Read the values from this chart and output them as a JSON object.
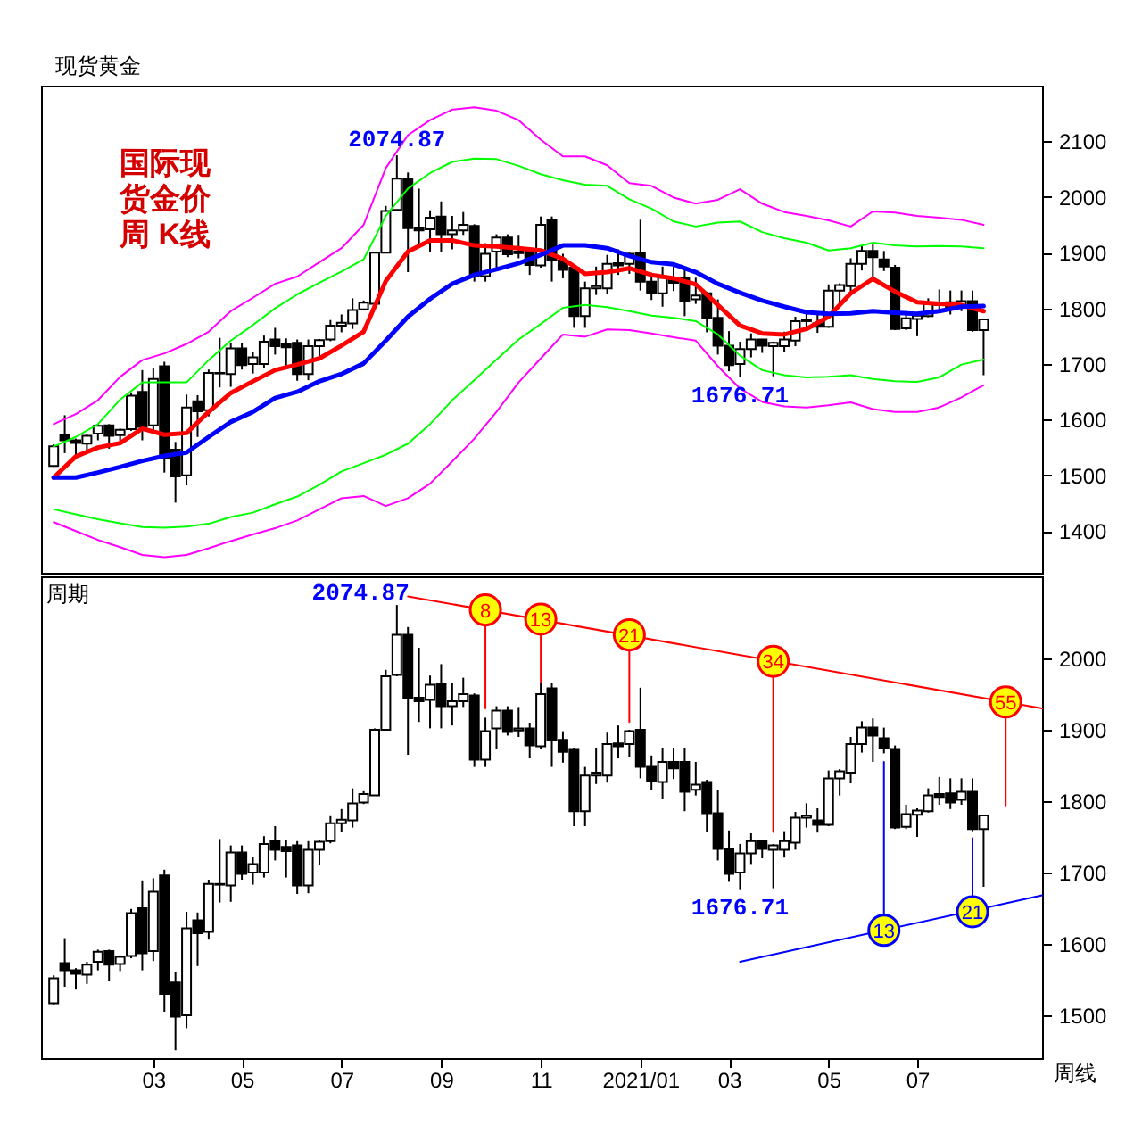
{
  "chart_data": [
    {
      "type": "candlestick",
      "title": "现货黄金",
      "color": "#000000",
      "x": [
        "2020-01-03",
        "2020-01-10",
        "2020-01-17",
        "2020-01-24",
        "2020-01-31",
        "2020-02-07",
        "2020-02-14",
        "2020-02-21",
        "2020-02-28",
        "2020-03-06",
        "2020-03-13",
        "2020-03-20",
        "2020-03-27",
        "2020-04-03",
        "2020-04-10",
        "2020-04-17",
        "2020-04-24",
        "2020-05-01",
        "2020-05-08",
        "2020-05-15",
        "2020-05-22",
        "2020-05-29",
        "2020-06-05",
        "2020-06-12",
        "2020-06-19",
        "2020-06-26",
        "2020-07-03",
        "2020-07-10",
        "2020-07-17",
        "2020-07-24",
        "2020-07-31",
        "2020-08-07",
        "2020-08-14",
        "2020-08-21",
        "2020-08-28",
        "2020-09-04",
        "2020-09-11",
        "2020-09-18",
        "2020-09-25",
        "2020-10-02",
        "2020-10-09",
        "2020-10-16",
        "2020-10-23",
        "2020-10-30",
        "2020-11-06",
        "2020-11-13",
        "2020-11-20",
        "2020-11-27",
        "2020-12-04",
        "2020-12-11",
        "2020-12-18",
        "2020-12-25",
        "2021-01-01",
        "2021-01-08",
        "2021-01-15",
        "2021-01-22",
        "2021-01-29",
        "2021-02-05",
        "2021-02-12",
        "2021-02-19",
        "2021-02-26",
        "2021-03-05",
        "2021-03-12",
        "2021-03-19",
        "2021-03-26",
        "2021-04-02",
        "2021-04-09",
        "2021-04-16",
        "2021-04-23",
        "2021-04-30",
        "2021-05-07",
        "2021-05-14",
        "2021-05-21",
        "2021-05-28",
        "2021-06-04",
        "2021-06-11",
        "2021-06-18",
        "2021-06-25",
        "2021-07-02",
        "2021-07-09",
        "2021-07-16",
        "2021-07-23",
        "2021-07-30",
        "2021-08-06",
        "2021-08-13"
      ],
      "ohlc": [
        [
          1517,
          1556,
          1515,
          1552
        ],
        [
          1573,
          1608,
          1540,
          1563
        ],
        [
          1563,
          1566,
          1536,
          1558
        ],
        [
          1557,
          1575,
          1544,
          1571
        ],
        [
          1575,
          1592,
          1563,
          1589
        ],
        [
          1590,
          1592,
          1548,
          1571
        ],
        [
          1572,
          1584,
          1562,
          1582
        ],
        [
          1583,
          1649,
          1580,
          1643
        ],
        [
          1650,
          1689,
          1563,
          1587
        ],
        [
          1590,
          1692,
          1576,
          1673
        ],
        [
          1696,
          1704,
          1505,
          1530
        ],
        [
          1546,
          1560,
          1451,
          1498
        ],
        [
          1500,
          1645,
          1482,
          1622
        ],
        [
          1633,
          1644,
          1569,
          1615
        ],
        [
          1617,
          1690,
          1606,
          1684
        ],
        [
          1684,
          1747,
          1658,
          1683
        ],
        [
          1682,
          1738,
          1659,
          1728
        ],
        [
          1728,
          1738,
          1690,
          1698
        ],
        [
          1700,
          1722,
          1683,
          1712
        ],
        [
          1700,
          1751,
          1693,
          1740
        ],
        [
          1744,
          1765,
          1717,
          1732
        ],
        [
          1736,
          1746,
          1693,
          1730
        ],
        [
          1738,
          1744,
          1670,
          1682
        ],
        [
          1682,
          1744,
          1671,
          1732
        ],
        [
          1732,
          1745,
          1711,
          1743
        ],
        [
          1744,
          1779,
          1741,
          1769
        ],
        [
          1769,
          1789,
          1757,
          1774
        ],
        [
          1773,
          1818,
          1763,
          1797
        ],
        [
          1798,
          1814,
          1796,
          1810
        ],
        [
          1808,
          1902,
          1808,
          1900
        ],
        [
          1900,
          1984,
          1900,
          1975
        ],
        [
          1977,
          2074.87,
          1975,
          2033
        ],
        [
          2033,
          2044,
          1865,
          1944
        ],
        [
          1945,
          2015,
          1911,
          1940
        ],
        [
          1942,
          1976,
          1902,
          1963
        ],
        [
          1965,
          1992,
          1902,
          1933
        ],
        [
          1933,
          1966,
          1906,
          1940
        ],
        [
          1940,
          1973,
          1932,
          1950
        ],
        [
          1948,
          1951,
          1848,
          1858
        ],
        [
          1858,
          1917,
          1848,
          1898
        ],
        [
          1902,
          1933,
          1873,
          1927
        ],
        [
          1927,
          1933,
          1892,
          1897
        ],
        [
          1899,
          1932,
          1890,
          1902
        ],
        [
          1902,
          1910,
          1860,
          1878
        ],
        [
          1877,
          1965,
          1873,
          1950
        ],
        [
          1958,
          1965,
          1848,
          1886
        ],
        [
          1886,
          1898,
          1854,
          1869
        ],
        [
          1873,
          1875,
          1765,
          1786
        ],
        [
          1786,
          1848,
          1765,
          1836
        ],
        [
          1836,
          1875,
          1824,
          1840
        ],
        [
          1836,
          1896,
          1826,
          1880
        ],
        [
          1881,
          1906,
          1860,
          1877
        ],
        [
          1880,
          1900,
          1862,
          1898
        ],
        [
          1900,
          1959,
          1832,
          1848
        ],
        [
          1848,
          1864,
          1815,
          1828
        ],
        [
          1827,
          1875,
          1803,
          1855
        ],
        [
          1855,
          1875,
          1831,
          1846
        ],
        [
          1855,
          1875,
          1786,
          1813
        ],
        [
          1816,
          1855,
          1808,
          1823
        ],
        [
          1827,
          1830,
          1757,
          1783
        ],
        [
          1783,
          1816,
          1717,
          1733
        ],
        [
          1733,
          1759,
          1687,
          1698
        ],
        [
          1700,
          1740,
          1676.71,
          1727
        ],
        [
          1727,
          1755,
          1712,
          1744
        ],
        [
          1744,
          1745,
          1720,
          1733
        ],
        [
          1732,
          1740,
          1678,
          1738
        ],
        [
          1732,
          1758,
          1721,
          1744
        ],
        [
          1742,
          1785,
          1732,
          1777
        ],
        [
          1777,
          1797,
          1763,
          1780
        ],
        [
          1773,
          1790,
          1756,
          1767
        ],
        [
          1767,
          1843,
          1765,
          1832
        ],
        [
          1832,
          1845,
          1808,
          1842
        ],
        [
          1840,
          1890,
          1825,
          1880
        ],
        [
          1880,
          1912,
          1868,
          1903
        ],
        [
          1903,
          1916,
          1855,
          1892
        ],
        [
          1888,
          1903,
          1867,
          1875
        ],
        [
          1873,
          1878,
          1761,
          1763
        ],
        [
          1764,
          1795,
          1761,
          1782
        ],
        [
          1781,
          1790,
          1750,
          1787
        ],
        [
          1786,
          1818,
          1784,
          1808
        ],
        [
          1810,
          1834,
          1795,
          1806
        ],
        [
          1811,
          1832,
          1789,
          1798
        ],
        [
          1802,
          1832,
          1795,
          1813
        ],
        [
          1813,
          1832,
          1758,
          1761
        ],
        [
          1761,
          1780,
          1680,
          1780
        ]
      ],
      "xlim": [
        "2019-12-26",
        "2021-09-19"
      ],
      "ylim": [
        1325,
        2200
      ],
      "yticks": [
        1400,
        1500,
        1600,
        1700,
        1800,
        1900,
        2000,
        2100
      ],
      "tick_labels": "y",
      "series": [
        {
          "type": "line",
          "color": "#ff0000",
          "x": [
            "2020-01-03",
            "2020-01-17",
            "2020-01-31",
            "2020-02-14",
            "2020-02-28",
            "2020-03-13",
            "2020-03-27",
            "2020-04-10",
            "2020-04-24",
            "2020-05-08",
            "2020-05-22",
            "2020-06-05",
            "2020-06-19",
            "2020-07-03",
            "2020-07-17",
            "2020-07-31",
            "2020-08-14",
            "2020-08-28",
            "2020-09-11",
            "2020-09-25",
            "2020-10-09",
            "2020-10-23",
            "2020-11-06",
            "2020-11-20",
            "2020-12-04",
            "2020-12-18",
            "2021-01-01",
            "2021-01-15",
            "2021-01-29",
            "2021-02-12",
            "2021-02-26",
            "2021-03-12",
            "2021-03-26",
            "2021-04-09",
            "2021-04-23",
            "2021-05-07",
            "2021-05-21",
            "2021-06-04",
            "2021-06-18",
            "2021-07-02",
            "2021-07-16",
            "2021-07-30",
            "2021-08-13"
          ],
          "values": [
            1496,
            1534,
            1550,
            1558,
            1584,
            1573,
            1576,
            1614,
            1648,
            1669,
            1689,
            1699,
            1710,
            1733,
            1758,
            1849,
            1902,
            1922,
            1922,
            1913,
            1911,
            1908,
            1904,
            1889,
            1862,
            1865,
            1872,
            1860,
            1854,
            1843,
            1806,
            1769,
            1755,
            1753,
            1763,
            1785,
            1827,
            1853,
            1830,
            1811,
            1808,
            1806,
            1795
          ]
        },
        {
          "type": "line",
          "color": "#0000ff",
          "x": [
            "2020-01-03",
            "2020-01-17",
            "2020-01-31",
            "2020-02-14",
            "2020-02-28",
            "2020-03-13",
            "2020-03-27",
            "2020-04-10",
            "2020-04-24",
            "2020-05-08",
            "2020-05-22",
            "2020-06-05",
            "2020-06-19",
            "2020-07-03",
            "2020-07-17",
            "2020-07-31",
            "2020-08-14",
            "2020-08-28",
            "2020-09-11",
            "2020-09-25",
            "2020-10-09",
            "2020-10-23",
            "2020-11-06",
            "2020-11-20",
            "2020-12-04",
            "2020-12-18",
            "2021-01-01",
            "2021-01-15",
            "2021-01-29",
            "2021-02-12",
            "2021-02-26",
            "2021-03-12",
            "2021-03-26",
            "2021-04-09",
            "2021-04-23",
            "2021-05-07",
            "2021-05-21",
            "2021-06-04",
            "2021-06-18",
            "2021-07-02",
            "2021-07-16",
            "2021-07-30",
            "2021-08-13"
          ],
          "values": [
            1496,
            1496,
            1505,
            1515,
            1526,
            1535,
            1541,
            1569,
            1596,
            1614,
            1639,
            1650,
            1669,
            1682,
            1701,
            1742,
            1785,
            1817,
            1844,
            1860,
            1870,
            1881,
            1896,
            1913,
            1913,
            1908,
            1894,
            1883,
            1879,
            1865,
            1844,
            1828,
            1814,
            1803,
            1793,
            1790,
            1791,
            1795,
            1792,
            1790,
            1795,
            1803,
            1804
          ]
        },
        {
          "type": "line",
          "color": "#00ff00",
          "x": [
            "2020-01-03",
            "2020-01-17",
            "2020-01-31",
            "2020-02-14",
            "2020-02-28",
            "2020-03-13",
            "2020-03-27",
            "2020-04-10",
            "2020-04-24",
            "2020-05-08",
            "2020-05-22",
            "2020-06-05",
            "2020-06-19",
            "2020-07-03",
            "2020-07-17",
            "2020-07-31",
            "2020-08-14",
            "2020-08-28",
            "2020-09-11",
            "2020-09-25",
            "2020-10-09",
            "2020-10-23",
            "2020-11-06",
            "2020-11-20",
            "2020-12-04",
            "2020-12-18",
            "2021-01-01",
            "2021-01-15",
            "2021-01-29",
            "2021-02-12",
            "2021-02-26",
            "2021-03-12",
            "2021-03-26",
            "2021-04-09",
            "2021-04-23",
            "2021-05-07",
            "2021-05-21",
            "2021-06-04",
            "2021-06-18",
            "2021-07-02",
            "2021-07-16",
            "2021-07-30",
            "2021-08-13"
          ],
          "values": [
            1552,
            1569,
            1592,
            1636,
            1667,
            1667,
            1667,
            1707,
            1742,
            1770,
            1800,
            1825,
            1846,
            1866,
            1888,
            1966,
            2015,
            2043,
            2063,
            2069,
            2068,
            2056,
            2041,
            2030,
            2022,
            2020,
            1996,
            1979,
            1956,
            1947,
            1954,
            1956,
            1937,
            1926,
            1918,
            1904,
            1908,
            1918,
            1913,
            1911,
            1912,
            1911,
            1908
          ]
        },
        {
          "type": "line",
          "color": "#00ff00",
          "x": [
            "2020-01-03",
            "2020-01-17",
            "2020-01-31",
            "2020-02-14",
            "2020-02-28",
            "2020-03-13",
            "2020-03-27",
            "2020-04-10",
            "2020-04-24",
            "2020-05-08",
            "2020-05-22",
            "2020-06-05",
            "2020-06-19",
            "2020-07-03",
            "2020-07-17",
            "2020-07-31",
            "2020-08-14",
            "2020-08-28",
            "2020-09-11",
            "2020-09-25",
            "2020-10-09",
            "2020-10-23",
            "2020-11-06",
            "2020-11-20",
            "2020-12-04",
            "2020-12-18",
            "2021-01-01",
            "2021-01-15",
            "2021-01-29",
            "2021-02-12",
            "2021-02-26",
            "2021-03-12",
            "2021-03-26",
            "2021-04-09",
            "2021-04-23",
            "2021-05-07",
            "2021-05-21",
            "2021-06-04",
            "2021-06-18",
            "2021-07-02",
            "2021-07-16",
            "2021-07-30",
            "2021-08-13"
          ],
          "values": [
            1439,
            1430,
            1421,
            1414,
            1407,
            1406,
            1408,
            1413,
            1425,
            1433,
            1448,
            1462,
            1483,
            1507,
            1522,
            1537,
            1557,
            1592,
            1635,
            1671,
            1708,
            1744,
            1772,
            1801,
            1806,
            1802,
            1795,
            1787,
            1783,
            1777,
            1753,
            1715,
            1689,
            1680,
            1676,
            1677,
            1680,
            1673,
            1669,
            1668,
            1676,
            1699,
            1708
          ]
        },
        {
          "type": "line",
          "color": "#ff00ff",
          "x": [
            "2020-01-03",
            "2020-01-17",
            "2020-01-31",
            "2020-02-14",
            "2020-02-28",
            "2020-03-13",
            "2020-03-27",
            "2020-04-10",
            "2020-04-24",
            "2020-05-08",
            "2020-05-22",
            "2020-06-05",
            "2020-06-19",
            "2020-07-03",
            "2020-07-17",
            "2020-07-31",
            "2020-08-14",
            "2020-08-28",
            "2020-09-11",
            "2020-09-25",
            "2020-10-09",
            "2020-10-23",
            "2020-11-06",
            "2020-11-20",
            "2020-12-04",
            "2020-12-18",
            "2021-01-01",
            "2021-01-15",
            "2021-01-29",
            "2021-02-12",
            "2021-02-26",
            "2021-03-12",
            "2021-03-26",
            "2021-04-09",
            "2021-04-23",
            "2021-05-07",
            "2021-05-21",
            "2021-06-04",
            "2021-06-18",
            "2021-07-02",
            "2021-07-16",
            "2021-07-30",
            "2021-08-13"
          ],
          "values": [
            1592,
            1610,
            1635,
            1677,
            1707,
            1719,
            1736,
            1758,
            1795,
            1819,
            1844,
            1857,
            1883,
            1908,
            1950,
            2052,
            2111,
            2138,
            2157,
            2161,
            2155,
            2138,
            2103,
            2073,
            2073,
            2057,
            2025,
            2020,
            1999,
            1988,
            1995,
            2014,
            1988,
            1973,
            1966,
            1958,
            1947,
            1974,
            1972,
            1966,
            1963,
            1959,
            1950
          ]
        },
        {
          "type": "line",
          "color": "#ff00ff",
          "x": [
            "2020-01-03",
            "2020-01-17",
            "2020-01-31",
            "2020-02-14",
            "2020-02-28",
            "2020-03-13",
            "2020-03-27",
            "2020-04-10",
            "2020-04-24",
            "2020-05-08",
            "2020-05-22",
            "2020-06-05",
            "2020-06-19",
            "2020-07-03",
            "2020-07-17",
            "2020-07-31",
            "2020-08-14",
            "2020-08-28",
            "2020-09-11",
            "2020-09-25",
            "2020-10-09",
            "2020-10-23",
            "2020-11-06",
            "2020-11-20",
            "2020-12-04",
            "2020-12-18",
            "2021-01-01",
            "2021-01-15",
            "2021-01-29",
            "2021-02-12",
            "2021-02-26",
            "2021-03-12",
            "2021-03-26",
            "2021-04-09",
            "2021-04-23",
            "2021-05-07",
            "2021-05-21",
            "2021-06-04",
            "2021-06-18",
            "2021-07-02",
            "2021-07-16",
            "2021-07-30",
            "2021-08-13"
          ],
          "values": [
            1416,
            1400,
            1384,
            1371,
            1357,
            1353,
            1357,
            1369,
            1382,
            1394,
            1405,
            1419,
            1439,
            1459,
            1463,
            1445,
            1459,
            1485,
            1525,
            1566,
            1614,
            1667,
            1710,
            1753,
            1749,
            1762,
            1761,
            1755,
            1748,
            1742,
            1696,
            1656,
            1632,
            1624,
            1622,
            1626,
            1631,
            1619,
            1614,
            1614,
            1622,
            1640,
            1662
          ]
        }
      ],
      "annotations": [
        {
          "text": "2074.87",
          "x": "2020-08-07",
          "y": 2074.87
        },
        {
          "text": "1676.71",
          "x": "2021-03-12",
          "y": 1676.71
        },
        "国际现货金价周 K线"
      ]
    },
    {
      "type": "candlestick",
      "title": "周期",
      "xlabel": "周线",
      "color": "#000000",
      "x": [
        "2020-01-03",
        "2020-01-10",
        "2020-01-17",
        "2020-01-24",
        "2020-01-31",
        "2020-02-07",
        "2020-02-14",
        "2020-02-21",
        "2020-02-28",
        "2020-03-06",
        "2020-03-13",
        "2020-03-20",
        "2020-03-27",
        "2020-04-03",
        "2020-04-10",
        "2020-04-17",
        "2020-04-24",
        "2020-05-01",
        "2020-05-08",
        "2020-05-15",
        "2020-05-22",
        "2020-05-29",
        "2020-06-05",
        "2020-06-12",
        "2020-06-19",
        "2020-06-26",
        "2020-07-03",
        "2020-07-10",
        "2020-07-17",
        "2020-07-24",
        "2020-07-31",
        "2020-08-07",
        "2020-08-14",
        "2020-08-21",
        "2020-08-28",
        "2020-09-04",
        "2020-09-11",
        "2020-09-18",
        "2020-09-25",
        "2020-10-02",
        "2020-10-09",
        "2020-10-16",
        "2020-10-23",
        "2020-10-30",
        "2020-11-06",
        "2020-11-13",
        "2020-11-20",
        "2020-11-27",
        "2020-12-04",
        "2020-12-11",
        "2020-12-18",
        "2020-12-25",
        "2021-01-01",
        "2021-01-08",
        "2021-01-15",
        "2021-01-22",
        "2021-01-29",
        "2021-02-05",
        "2021-02-12",
        "2021-02-19",
        "2021-02-26",
        "2021-03-05",
        "2021-03-12",
        "2021-03-19",
        "2021-03-26",
        "2021-04-02",
        "2021-04-09",
        "2021-04-16",
        "2021-04-23",
        "2021-04-30",
        "2021-05-07",
        "2021-05-14",
        "2021-05-21",
        "2021-05-28",
        "2021-06-04",
        "2021-06-11",
        "2021-06-18",
        "2021-06-25",
        "2021-07-02",
        "2021-07-09",
        "2021-07-16",
        "2021-07-23",
        "2021-07-30",
        "2021-08-06",
        "2021-08-13"
      ],
      "ohlc": [
        [
          1517,
          1556,
          1515,
          1552
        ],
        [
          1573,
          1608,
          1540,
          1563
        ],
        [
          1563,
          1566,
          1536,
          1558
        ],
        [
          1557,
          1575,
          1544,
          1571
        ],
        [
          1575,
          1592,
          1563,
          1589
        ],
        [
          1590,
          1592,
          1548,
          1571
        ],
        [
          1572,
          1584,
          1562,
          1582
        ],
        [
          1583,
          1649,
          1580,
          1643
        ],
        [
          1650,
          1689,
          1563,
          1587
        ],
        [
          1590,
          1692,
          1576,
          1673
        ],
        [
          1696,
          1704,
          1505,
          1530
        ],
        [
          1546,
          1560,
          1451,
          1498
        ],
        [
          1500,
          1645,
          1482,
          1622
        ],
        [
          1633,
          1644,
          1569,
          1615
        ],
        [
          1617,
          1690,
          1606,
          1684
        ],
        [
          1684,
          1747,
          1658,
          1683
        ],
        [
          1682,
          1738,
          1659,
          1728
        ],
        [
          1728,
          1738,
          1690,
          1698
        ],
        [
          1700,
          1722,
          1683,
          1712
        ],
        [
          1700,
          1751,
          1693,
          1740
        ],
        [
          1744,
          1765,
          1717,
          1732
        ],
        [
          1736,
          1746,
          1693,
          1730
        ],
        [
          1738,
          1744,
          1670,
          1682
        ],
        [
          1682,
          1744,
          1671,
          1732
        ],
        [
          1732,
          1745,
          1711,
          1743
        ],
        [
          1744,
          1779,
          1741,
          1769
        ],
        [
          1769,
          1789,
          1757,
          1774
        ],
        [
          1773,
          1818,
          1763,
          1797
        ],
        [
          1798,
          1814,
          1796,
          1810
        ],
        [
          1808,
          1902,
          1808,
          1900
        ],
        [
          1900,
          1984,
          1900,
          1975
        ],
        [
          1977,
          2074.87,
          1975,
          2033
        ],
        [
          2033,
          2044,
          1865,
          1944
        ],
        [
          1945,
          2015,
          1911,
          1940
        ],
        [
          1942,
          1976,
          1902,
          1963
        ],
        [
          1965,
          1992,
          1902,
          1933
        ],
        [
          1933,
          1966,
          1906,
          1940
        ],
        [
          1940,
          1973,
          1932,
          1950
        ],
        [
          1948,
          1951,
          1848,
          1858
        ],
        [
          1858,
          1917,
          1848,
          1898
        ],
        [
          1902,
          1933,
          1873,
          1927
        ],
        [
          1927,
          1933,
          1892,
          1897
        ],
        [
          1899,
          1932,
          1890,
          1902
        ],
        [
          1902,
          1910,
          1860,
          1878
        ],
        [
          1877,
          1965,
          1873,
          1950
        ],
        [
          1958,
          1965,
          1848,
          1886
        ],
        [
          1886,
          1898,
          1854,
          1869
        ],
        [
          1873,
          1875,
          1765,
          1786
        ],
        [
          1786,
          1848,
          1765,
          1836
        ],
        [
          1836,
          1875,
          1824,
          1840
        ],
        [
          1836,
          1896,
          1826,
          1880
        ],
        [
          1881,
          1906,
          1860,
          1877
        ],
        [
          1880,
          1900,
          1862,
          1898
        ],
        [
          1900,
          1959,
          1832,
          1848
        ],
        [
          1848,
          1864,
          1815,
          1828
        ],
        [
          1827,
          1875,
          1803,
          1855
        ],
        [
          1855,
          1875,
          1831,
          1846
        ],
        [
          1855,
          1875,
          1786,
          1813
        ],
        [
          1816,
          1855,
          1808,
          1823
        ],
        [
          1827,
          1830,
          1757,
          1783
        ],
        [
          1783,
          1816,
          1717,
          1733
        ],
        [
          1733,
          1759,
          1687,
          1698
        ],
        [
          1700,
          1740,
          1676.71,
          1727
        ],
        [
          1727,
          1755,
          1712,
          1744
        ],
        [
          1744,
          1745,
          1720,
          1733
        ],
        [
          1732,
          1740,
          1678,
          1738
        ],
        [
          1732,
          1758,
          1721,
          1744
        ],
        [
          1742,
          1785,
          1732,
          1777
        ],
        [
          1777,
          1797,
          1763,
          1780
        ],
        [
          1773,
          1790,
          1756,
          1767
        ],
        [
          1767,
          1843,
          1765,
          1832
        ],
        [
          1832,
          1845,
          1808,
          1842
        ],
        [
          1840,
          1890,
          1825,
          1880
        ],
        [
          1880,
          1912,
          1868,
          1903
        ],
        [
          1903,
          1916,
          1855,
          1892
        ],
        [
          1888,
          1903,
          1867,
          1875
        ],
        [
          1873,
          1878,
          1761,
          1763
        ],
        [
          1764,
          1795,
          1761,
          1782
        ],
        [
          1781,
          1790,
          1750,
          1787
        ],
        [
          1786,
          1818,
          1784,
          1808
        ],
        [
          1810,
          1834,
          1795,
          1806
        ],
        [
          1811,
          1832,
          1789,
          1798
        ],
        [
          1802,
          1832,
          1795,
          1813
        ],
        [
          1813,
          1832,
          1758,
          1761
        ],
        [
          1761,
          1780,
          1680,
          1780
        ]
      ],
      "xlim": [
        "2019-12-26",
        "2021-09-19"
      ],
      "ylim": [
        1440,
        2115
      ],
      "xticks": [
        {
          "value": "2020-03-06",
          "label": "03"
        },
        {
          "value": "2020-05-01",
          "label": "05"
        },
        {
          "value": "2020-07-03",
          "label": "07"
        },
        {
          "value": "2020-09-04",
          "label": "09"
        },
        {
          "value": "2020-11-06",
          "label": "11"
        },
        {
          "value": "2021-01-08",
          "label": "2021/01"
        },
        {
          "value": "2021-03-05",
          "label": "03"
        },
        {
          "value": "2021-05-07",
          "label": "05"
        },
        {
          "value": "2021-07-02",
          "label": "07"
        }
      ],
      "yticks": [
        1500,
        1600,
        1700,
        1800,
        1900,
        2000
      ],
      "series": [
        {
          "type": "line",
          "color": "#ff0000",
          "x": [
            "2020-08-14",
            "2021-09-19"
          ],
          "values": [
            2087,
            1930
          ]
        },
        {
          "type": "line",
          "color": "#ff0000",
          "x": [
            "2020-10-02",
            "2020-10-02"
          ],
          "values": [
            2068,
            1930
          ]
        },
        {
          "type": "line",
          "color": "#ff0000",
          "x": [
            "2020-11-06",
            "2020-11-06"
          ],
          "values": [
            2055,
            1967
          ]
        },
        {
          "type": "line",
          "color": "#ff0000",
          "x": [
            "2021-01-01",
            "2021-01-01"
          ],
          "values": [
            2033,
            1911
          ]
        },
        {
          "type": "line",
          "color": "#ff0000",
          "x": [
            "2021-04-02",
            "2021-04-02"
          ],
          "values": [
            1996,
            1757
          ]
        },
        {
          "type": "line",
          "color": "#ff0000",
          "x": [
            "2021-08-27",
            "2021-08-27"
          ],
          "values": [
            1939,
            1794
          ]
        },
        {
          "type": "line",
          "color": "#0000ff",
          "x": [
            "2021-03-12",
            "2021-09-19"
          ],
          "values": [
            1575,
            1668
          ]
        },
        {
          "type": "line",
          "color": "#0000ff",
          "x": [
            "2021-06-11",
            "2021-06-11"
          ],
          "values": [
            1619,
            1855
          ]
        },
        {
          "type": "line",
          "color": "#0000ff",
          "x": [
            "2021-08-06",
            "2021-08-06"
          ],
          "values": [
            1645,
            1748
          ]
        },
        {
          "type": "scatter",
          "color": "#ff0000",
          "marker": "circle",
          "colors": [
            "#ffff00",
            "#ffff00",
            "#ffff00",
            "#ffff00",
            "#ffff00"
          ],
          "x": [
            "2020-10-02",
            "2020-11-06",
            "2021-01-01",
            "2021-04-02",
            "2021-08-27"
          ],
          "values": [
            2068,
            2055,
            2033,
            1996,
            1939
          ]
        },
        {
          "type": "scatter",
          "color": "#0000ff",
          "marker": "circle",
          "colors": [
            "#ffff00",
            "#ffff00"
          ],
          "x": [
            "2021-06-11",
            "2021-08-06"
          ],
          "values": [
            1619,
            1645
          ]
        }
      ],
      "annotations": [
        {
          "text": "2074.87",
          "x": "2020-08-07",
          "y": 2074.87
        },
        {
          "text": "1676.71",
          "x": "2021-03-12",
          "y": 1676.71
        },
        {
          "text": "8",
          "x": "2020-10-02",
          "y": 2068
        },
        {
          "text": "13",
          "x": "2020-11-06",
          "y": 2055
        },
        {
          "text": "21",
          "x": "2021-01-01",
          "y": 2033
        },
        {
          "text": "34",
          "x": "2021-04-02",
          "y": 1996
        },
        {
          "text": "55",
          "x": "2021-08-27",
          "y": 1939
        },
        {
          "text": "13",
          "x": "2021-06-11",
          "y": 1619
        },
        {
          "text": "21",
          "x": "2021-08-06",
          "y": 1645
        }
      ]
    }
  ]
}
